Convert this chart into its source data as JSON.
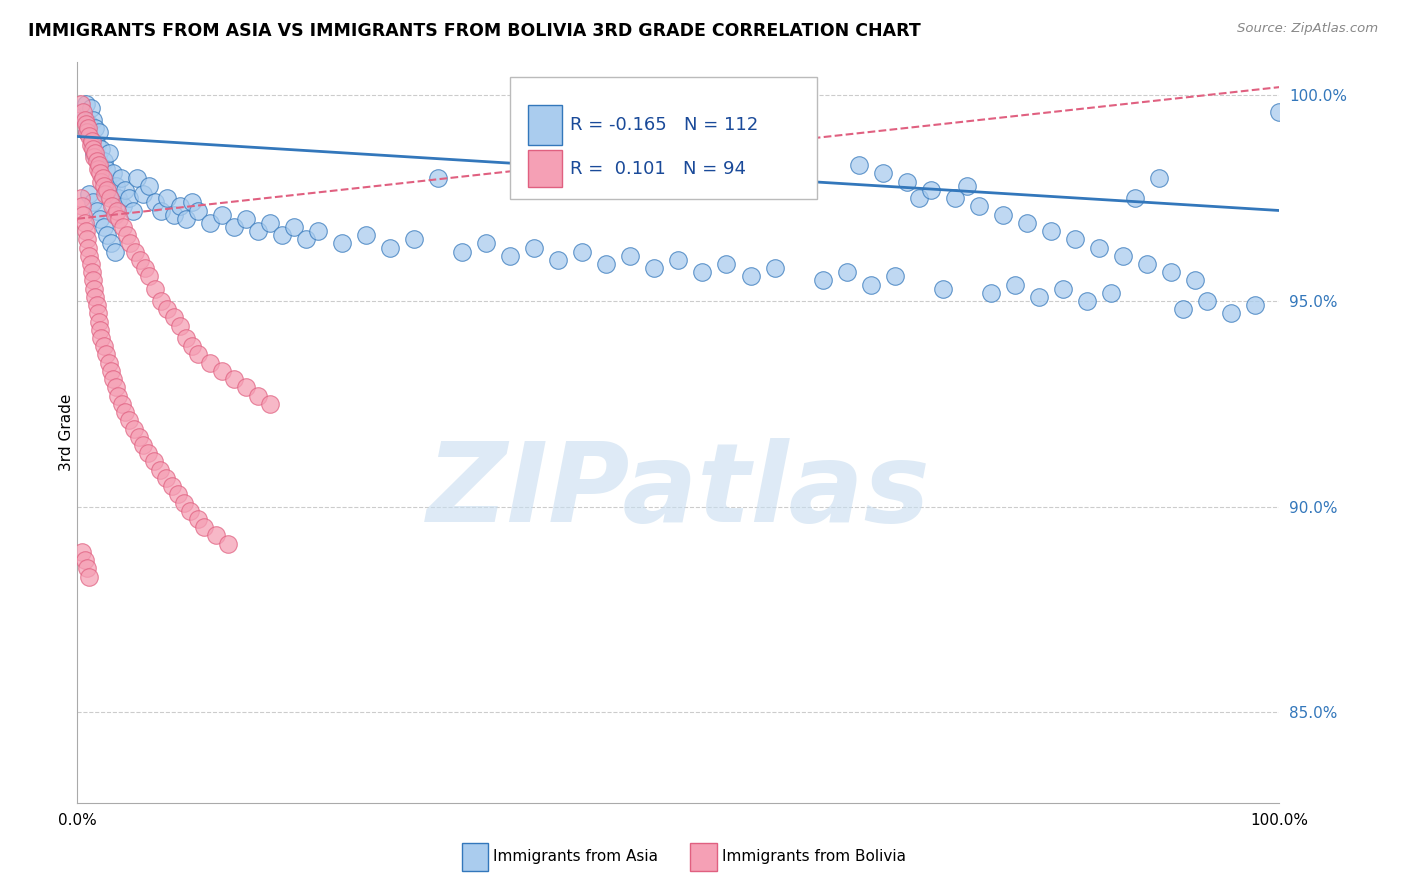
{
  "title": "IMMIGRANTS FROM ASIA VS IMMIGRANTS FROM BOLIVIA 3RD GRADE CORRELATION CHART",
  "source": "Source: ZipAtlas.com",
  "ylabel": "3rd Grade",
  "xlim": [
    0.0,
    1.0
  ],
  "ylim": [
    0.828,
    1.008
  ],
  "yticks": [
    0.85,
    0.9,
    0.95,
    1.0
  ],
  "ytick_labels": [
    "85.0%",
    "90.0%",
    "95.0%",
    "100.0%"
  ],
  "legend_r_asia": "-0.165",
  "legend_n_asia": "112",
  "legend_r_bolivia": "0.101",
  "legend_n_bolivia": "94",
  "legend_label_asia": "Immigrants from Asia",
  "legend_label_bolivia": "Immigrants from Bolivia",
  "color_asia": "#aaccee",
  "color_bolivia": "#f5a0b5",
  "color_asia_line": "#3377bb",
  "color_bolivia_line": "#e06080",
  "watermark": "ZIPatlas",
  "watermark_color": "#c8ddf0",
  "asia_line_start_y": 0.99,
  "asia_line_end_y": 0.972,
  "bolivia_line_start_y": 0.97,
  "bolivia_line_end_y": 1.002,
  "asia_x": [
    0.005,
    0.007,
    0.008,
    0.01,
    0.011,
    0.012,
    0.013,
    0.014,
    0.015,
    0.016,
    0.017,
    0.018,
    0.019,
    0.02,
    0.021,
    0.022,
    0.024,
    0.025,
    0.026,
    0.028,
    0.03,
    0.032,
    0.034,
    0.036,
    0.038,
    0.04,
    0.043,
    0.046,
    0.05,
    0.055,
    0.06,
    0.065,
    0.07,
    0.075,
    0.08,
    0.085,
    0.09,
    0.095,
    0.1,
    0.11,
    0.12,
    0.13,
    0.14,
    0.15,
    0.16,
    0.17,
    0.18,
    0.19,
    0.2,
    0.22,
    0.24,
    0.26,
    0.28,
    0.3,
    0.32,
    0.34,
    0.36,
    0.38,
    0.4,
    0.42,
    0.44,
    0.46,
    0.48,
    0.5,
    0.52,
    0.54,
    0.56,
    0.58,
    0.6,
    0.62,
    0.64,
    0.66,
    0.68,
    0.7,
    0.72,
    0.74,
    0.76,
    0.78,
    0.8,
    0.82,
    0.84,
    0.86,
    0.88,
    0.9,
    0.92,
    0.94,
    0.96,
    0.98,
    1.0,
    0.65,
    0.67,
    0.69,
    0.71,
    0.73,
    0.75,
    0.77,
    0.79,
    0.81,
    0.83,
    0.85,
    0.87,
    0.89,
    0.91,
    0.93,
    0.01,
    0.013,
    0.016,
    0.019,
    0.022,
    0.025,
    0.028,
    0.031
  ],
  "asia_y": [
    0.995,
    0.998,
    0.991,
    0.993,
    0.997,
    0.989,
    0.994,
    0.986,
    0.992,
    0.988,
    0.985,
    0.991,
    0.983,
    0.987,
    0.98,
    0.984,
    0.982,
    0.979,
    0.986,
    0.977,
    0.981,
    0.978,
    0.975,
    0.98,
    0.973,
    0.977,
    0.975,
    0.972,
    0.98,
    0.976,
    0.978,
    0.974,
    0.972,
    0.975,
    0.971,
    0.973,
    0.97,
    0.974,
    0.972,
    0.969,
    0.971,
    0.968,
    0.97,
    0.967,
    0.969,
    0.966,
    0.968,
    0.965,
    0.967,
    0.964,
    0.966,
    0.963,
    0.965,
    0.98,
    0.962,
    0.964,
    0.961,
    0.963,
    0.96,
    0.962,
    0.959,
    0.961,
    0.958,
    0.96,
    0.957,
    0.959,
    0.956,
    0.958,
    0.98,
    0.955,
    0.957,
    0.954,
    0.956,
    0.975,
    0.953,
    0.978,
    0.952,
    0.954,
    0.951,
    0.953,
    0.95,
    0.952,
    0.975,
    0.98,
    0.948,
    0.95,
    0.947,
    0.949,
    0.996,
    0.983,
    0.981,
    0.979,
    0.977,
    0.975,
    0.973,
    0.971,
    0.969,
    0.967,
    0.965,
    0.963,
    0.961,
    0.959,
    0.957,
    0.955,
    0.976,
    0.974,
    0.972,
    0.97,
    0.968,
    0.966,
    0.964,
    0.962
  ],
  "bolivia_x": [
    0.003,
    0.005,
    0.006,
    0.007,
    0.008,
    0.009,
    0.01,
    0.011,
    0.012,
    0.013,
    0.014,
    0.015,
    0.016,
    0.017,
    0.018,
    0.019,
    0.02,
    0.021,
    0.022,
    0.023,
    0.025,
    0.027,
    0.029,
    0.031,
    0.033,
    0.035,
    0.038,
    0.041,
    0.044,
    0.048,
    0.052,
    0.056,
    0.06,
    0.065,
    0.07,
    0.075,
    0.08,
    0.085,
    0.09,
    0.095,
    0.1,
    0.11,
    0.12,
    0.13,
    0.14,
    0.15,
    0.16,
    0.003,
    0.004,
    0.005,
    0.006,
    0.007,
    0.008,
    0.009,
    0.01,
    0.011,
    0.012,
    0.013,
    0.014,
    0.015,
    0.016,
    0.017,
    0.018,
    0.019,
    0.02,
    0.022,
    0.024,
    0.026,
    0.028,
    0.03,
    0.032,
    0.034,
    0.037,
    0.04,
    0.043,
    0.047,
    0.051,
    0.055,
    0.059,
    0.064,
    0.069,
    0.074,
    0.079,
    0.084,
    0.089,
    0.094,
    0.1,
    0.105,
    0.115,
    0.125,
    0.004,
    0.006,
    0.008,
    0.01
  ],
  "bolivia_y": [
    0.998,
    0.996,
    0.994,
    0.993,
    0.991,
    0.992,
    0.99,
    0.988,
    0.989,
    0.987,
    0.985,
    0.986,
    0.984,
    0.982,
    0.983,
    0.981,
    0.979,
    0.98,
    0.978,
    0.976,
    0.977,
    0.975,
    0.973,
    0.971,
    0.972,
    0.97,
    0.968,
    0.966,
    0.964,
    0.962,
    0.96,
    0.958,
    0.956,
    0.953,
    0.95,
    0.948,
    0.946,
    0.944,
    0.941,
    0.939,
    0.937,
    0.935,
    0.933,
    0.931,
    0.929,
    0.927,
    0.925,
    0.975,
    0.973,
    0.971,
    0.969,
    0.967,
    0.965,
    0.963,
    0.961,
    0.959,
    0.957,
    0.955,
    0.953,
    0.951,
    0.949,
    0.947,
    0.945,
    0.943,
    0.941,
    0.939,
    0.937,
    0.935,
    0.933,
    0.931,
    0.929,
    0.927,
    0.925,
    0.923,
    0.921,
    0.919,
    0.917,
    0.915,
    0.913,
    0.911,
    0.909,
    0.907,
    0.905,
    0.903,
    0.901,
    0.899,
    0.897,
    0.895,
    0.893,
    0.891,
    0.889,
    0.887,
    0.885,
    0.883
  ]
}
